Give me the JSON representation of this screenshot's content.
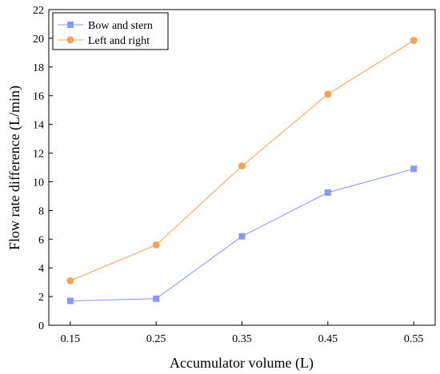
{
  "chart_data": {
    "type": "line",
    "title": "",
    "xlabel": "Accumulator volume (L)",
    "ylabel": "Flow rate difference (L/min)",
    "x": [
      0.15,
      0.25,
      0.35,
      0.45,
      0.55
    ],
    "x_tick_labels": [
      "0.15",
      "0.25",
      "0.35",
      "0.45",
      "0.55"
    ],
    "y_tick_labels": [
      "0",
      "2",
      "4",
      "6",
      "8",
      "10",
      "12",
      "14",
      "16",
      "18",
      "20",
      "22"
    ],
    "xlim": [
      0.125,
      0.575
    ],
    "ylim": [
      0,
      22
    ],
    "grid": false,
    "legend_position": "top-left",
    "series": [
      {
        "name": "Bow and stern",
        "marker": "square",
        "color": "#8c96f4",
        "values": [
          1.7,
          1.85,
          6.2,
          9.25,
          10.9
        ]
      },
      {
        "name": "Left and right",
        "marker": "circle",
        "color": "#f5a35c",
        "values": [
          3.1,
          5.6,
          11.1,
          16.1,
          19.85
        ]
      }
    ]
  }
}
